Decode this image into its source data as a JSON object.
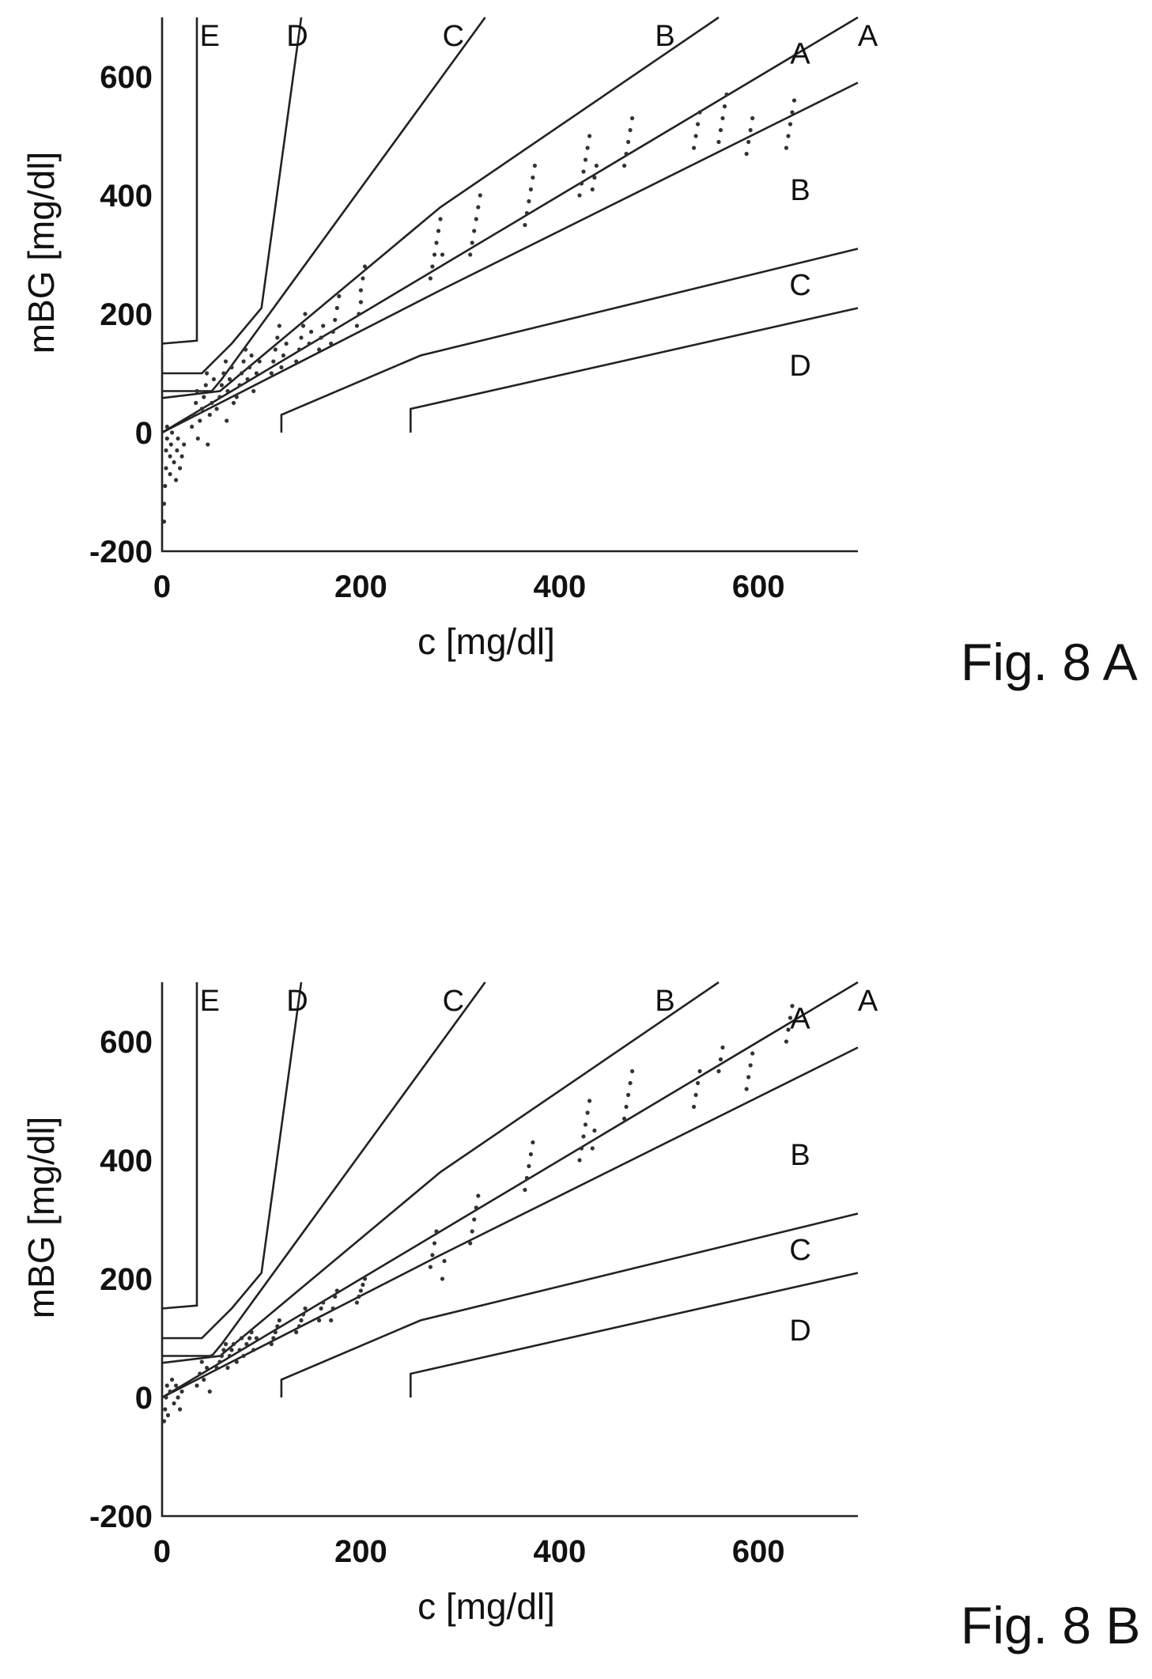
{
  "figures": [
    {
      "caption": "Fig. 8 A",
      "xlabel": "c [mg/dl]",
      "ylabel": "mBG [mg/dl]",
      "xticks": [
        "0",
        "200",
        "400",
        "600"
      ],
      "yticks": [
        "-200",
        "0",
        "200",
        "400",
        "600"
      ],
      "zone_labels": {
        "top": [
          "E",
          "D",
          "C",
          "B",
          "A"
        ],
        "right": [
          "A",
          "B",
          "C",
          "D"
        ]
      }
    },
    {
      "caption": "Fig. 8 B",
      "xlabel": "c [mg/dl]",
      "ylabel": "mBG [mg/dl]",
      "xticks": [
        "0",
        "200",
        "400",
        "600"
      ],
      "yticks": [
        "-200",
        "0",
        "200",
        "400",
        "600"
      ],
      "zone_labels": {
        "top": [
          "E",
          "D",
          "C",
          "B",
          "A"
        ],
        "right": [
          "A",
          "B",
          "C",
          "D"
        ]
      }
    }
  ],
  "chart_data": [
    {
      "type": "scatter",
      "title": "",
      "xlabel": "c [mg/dl]",
      "ylabel": "mBG [mg/dl]",
      "xlim": [
        0,
        700
      ],
      "ylim": [
        -200,
        700
      ],
      "grid": false,
      "series": [
        {
          "points": [
            [
              2,
              -150
            ],
            [
              2,
              -120
            ],
            [
              3,
              -90
            ],
            [
              4,
              -60
            ],
            [
              4,
              -30
            ],
            [
              5,
              -10
            ],
            [
              5,
              10
            ],
            [
              8,
              -70
            ],
            [
              8,
              -40
            ],
            [
              9,
              -20
            ],
            [
              10,
              0
            ],
            [
              12,
              -50
            ],
            [
              14,
              -80
            ],
            [
              15,
              -30
            ],
            [
              16,
              -10
            ],
            [
              18,
              -60
            ],
            [
              20,
              -40
            ],
            [
              22,
              -20
            ],
            [
              30,
              10
            ],
            [
              32,
              30
            ],
            [
              34,
              50
            ],
            [
              35,
              70
            ],
            [
              36,
              -10
            ],
            [
              38,
              20
            ],
            [
              40,
              40
            ],
            [
              42,
              60
            ],
            [
              44,
              80
            ],
            [
              45,
              100
            ],
            [
              46,
              -20
            ],
            [
              48,
              30
            ],
            [
              50,
              50
            ],
            [
              52,
              90
            ],
            [
              55,
              40
            ],
            [
              58,
              60
            ],
            [
              60,
              80
            ],
            [
              62,
              100
            ],
            [
              64,
              120
            ],
            [
              65,
              20
            ],
            [
              66,
              70
            ],
            [
              68,
              90
            ],
            [
              70,
              110
            ],
            [
              72,
              50
            ],
            [
              75,
              60
            ],
            [
              78,
              80
            ],
            [
              80,
              100
            ],
            [
              82,
              120
            ],
            [
              84,
              140
            ],
            [
              86,
              90
            ],
            [
              88,
              110
            ],
            [
              90,
              130
            ],
            [
              92,
              70
            ],
            [
              95,
              100
            ],
            [
              98,
              120
            ],
            [
              110,
              100
            ],
            [
              112,
              120
            ],
            [
              114,
              140
            ],
            [
              116,
              160
            ],
            [
              118,
              180
            ],
            [
              120,
              110
            ],
            [
              122,
              130
            ],
            [
              125,
              150
            ],
            [
              135,
              120
            ],
            [
              138,
              140
            ],
            [
              140,
              160
            ],
            [
              142,
              180
            ],
            [
              144,
              200
            ],
            [
              148,
              150
            ],
            [
              150,
              170
            ],
            [
              158,
              140
            ],
            [
              160,
              160
            ],
            [
              162,
              180
            ],
            [
              170,
              150
            ],
            [
              172,
              170
            ],
            [
              174,
              190
            ],
            [
              176,
              210
            ],
            [
              178,
              230
            ],
            [
              196,
              180
            ],
            [
              198,
              200
            ],
            [
              200,
              220
            ],
            [
              200,
              240
            ],
            [
              202,
              260
            ],
            [
              204,
              280
            ],
            [
              270,
              260
            ],
            [
              272,
              280
            ],
            [
              274,
              300
            ],
            [
              276,
              320
            ],
            [
              278,
              340
            ],
            [
              280,
              360
            ],
            [
              282,
              300
            ],
            [
              310,
              300
            ],
            [
              312,
              320
            ],
            [
              314,
              340
            ],
            [
              316,
              360
            ],
            [
              318,
              380
            ],
            [
              320,
              400
            ],
            [
              365,
              350
            ],
            [
              367,
              370
            ],
            [
              369,
              390
            ],
            [
              371,
              410
            ],
            [
              373,
              430
            ],
            [
              375,
              450
            ],
            [
              420,
              400
            ],
            [
              422,
              420
            ],
            [
              424,
              440
            ],
            [
              426,
              460
            ],
            [
              428,
              480
            ],
            [
              430,
              500
            ],
            [
              433,
              410
            ],
            [
              435,
              430
            ],
            [
              437,
              450
            ],
            [
              465,
              450
            ],
            [
              467,
              470
            ],
            [
              469,
              490
            ],
            [
              471,
              510
            ],
            [
              473,
              530
            ],
            [
              535,
              480
            ],
            [
              537,
              500
            ],
            [
              539,
              520
            ],
            [
              541,
              540
            ],
            [
              560,
              490
            ],
            [
              562,
              510
            ],
            [
              564,
              530
            ],
            [
              566,
              550
            ],
            [
              568,
              570
            ],
            [
              588,
              470
            ],
            [
              590,
              490
            ],
            [
              592,
              510
            ],
            [
              594,
              530
            ],
            [
              628,
              480
            ],
            [
              630,
              500
            ],
            [
              632,
              520
            ],
            [
              634,
              540
            ],
            [
              636,
              560
            ]
          ]
        }
      ]
    },
    {
      "type": "scatter",
      "title": "",
      "xlabel": "c [mg/dl]",
      "ylabel": "mBG [mg/dl]",
      "xlim": [
        0,
        700
      ],
      "ylim": [
        -200,
        700
      ],
      "grid": false,
      "series": [
        {
          "points": [
            [
              2,
              -40
            ],
            [
              3,
              -20
            ],
            [
              4,
              0
            ],
            [
              5,
              20
            ],
            [
              6,
              -30
            ],
            [
              8,
              10
            ],
            [
              10,
              30
            ],
            [
              12,
              -10
            ],
            [
              14,
              20
            ],
            [
              16,
              0
            ],
            [
              18,
              -20
            ],
            [
              20,
              10
            ],
            [
              35,
              20
            ],
            [
              38,
              40
            ],
            [
              40,
              60
            ],
            [
              42,
              30
            ],
            [
              45,
              50
            ],
            [
              48,
              10
            ],
            [
              50,
              70
            ],
            [
              55,
              50
            ],
            [
              58,
              60
            ],
            [
              60,
              70
            ],
            [
              62,
              80
            ],
            [
              64,
              90
            ],
            [
              66,
              50
            ],
            [
              68,
              70
            ],
            [
              70,
              80
            ],
            [
              72,
              90
            ],
            [
              75,
              60
            ],
            [
              78,
              80
            ],
            [
              80,
              100
            ],
            [
              82,
              70
            ],
            [
              85,
              90
            ],
            [
              88,
              100
            ],
            [
              90,
              110
            ],
            [
              92,
              80
            ],
            [
              95,
              100
            ],
            [
              110,
              90
            ],
            [
              112,
              100
            ],
            [
              114,
              110
            ],
            [
              116,
              120
            ],
            [
              118,
              130
            ],
            [
              135,
              110
            ],
            [
              138,
              120
            ],
            [
              140,
              130
            ],
            [
              142,
              140
            ],
            [
              144,
              150
            ],
            [
              158,
              130
            ],
            [
              160,
              150
            ],
            [
              162,
              160
            ],
            [
              170,
              130
            ],
            [
              172,
              150
            ],
            [
              174,
              170
            ],
            [
              176,
              180
            ],
            [
              196,
              160
            ],
            [
              198,
              170
            ],
            [
              200,
              180
            ],
            [
              202,
              190
            ],
            [
              204,
              200
            ],
            [
              270,
              220
            ],
            [
              272,
              240
            ],
            [
              274,
              260
            ],
            [
              276,
              280
            ],
            [
              282,
              200
            ],
            [
              284,
              230
            ],
            [
              310,
              260
            ],
            [
              312,
              280
            ],
            [
              314,
              300
            ],
            [
              316,
              320
            ],
            [
              318,
              340
            ],
            [
              365,
              350
            ],
            [
              367,
              370
            ],
            [
              369,
              390
            ],
            [
              371,
              410
            ],
            [
              373,
              430
            ],
            [
              420,
              400
            ],
            [
              422,
              420
            ],
            [
              424,
              440
            ],
            [
              426,
              460
            ],
            [
              428,
              480
            ],
            [
              430,
              500
            ],
            [
              433,
              420
            ],
            [
              435,
              450
            ],
            [
              465,
              470
            ],
            [
              467,
              490
            ],
            [
              469,
              510
            ],
            [
              471,
              530
            ],
            [
              473,
              550
            ],
            [
              535,
              490
            ],
            [
              537,
              510
            ],
            [
              539,
              530
            ],
            [
              541,
              550
            ],
            [
              560,
              550
            ],
            [
              562,
              570
            ],
            [
              564,
              590
            ],
            [
              588,
              520
            ],
            [
              590,
              540
            ],
            [
              592,
              560
            ],
            [
              594,
              580
            ],
            [
              628,
              600
            ],
            [
              630,
              620
            ],
            [
              632,
              640
            ],
            [
              634,
              660
            ]
          ]
        }
      ]
    }
  ]
}
